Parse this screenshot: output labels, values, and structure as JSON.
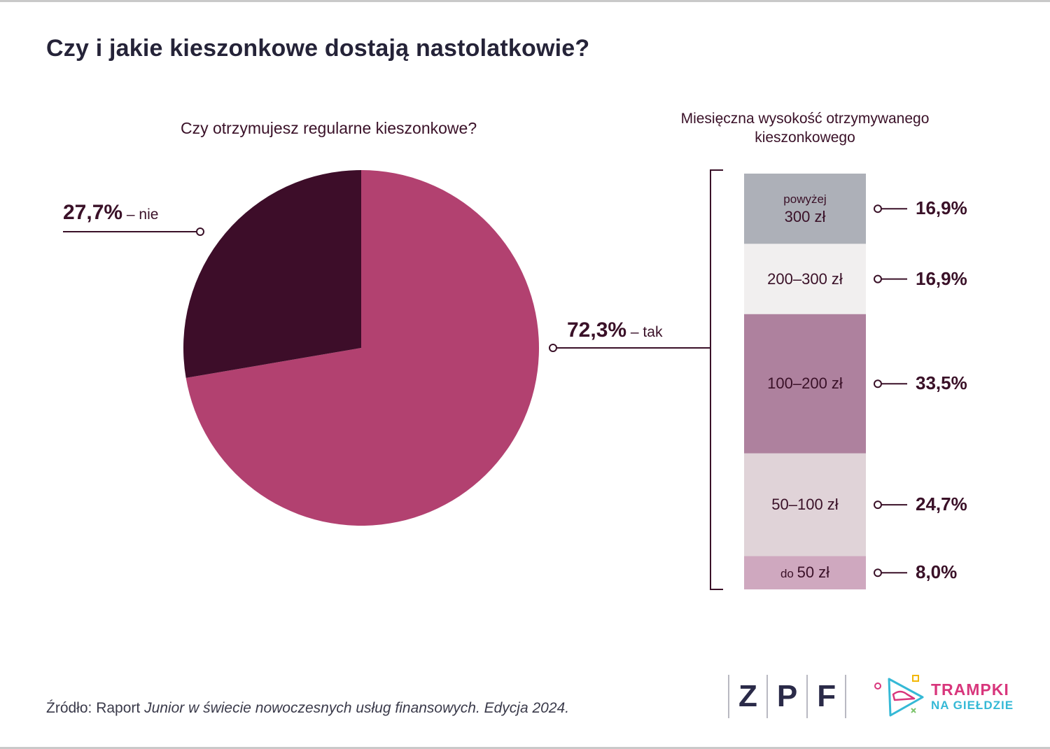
{
  "page": {
    "title": "Czy i jakie kieszonkowe dostają nastolatkowie?",
    "source_prefix": "Źródło: Raport ",
    "source_italic": "Junior w świecie nowoczesnych usług finansowych. Edycja 2024.",
    "logos": {
      "zpf_letters": [
        "Z",
        "P",
        "F"
      ],
      "trampki_line1": "TRAMPKI",
      "trampki_line2": "NA GIEŁDZIE"
    }
  },
  "chart_data": [
    {
      "type": "pie",
      "title": "Czy otrzymujesz regularne kieszonkowe?",
      "slices": [
        {
          "label": "tak",
          "display": "72,3%",
          "value": 72.3,
          "color": "#b24170"
        },
        {
          "label": "nie",
          "display": "27,7%",
          "value": 27.7,
          "color": "#3d0d29"
        }
      ],
      "label_separator": "–"
    },
    {
      "type": "bar",
      "stacked": true,
      "title": "Miesięczna wysokość otrzymywanego kieszonkowego",
      "segments": [
        {
          "label_small": "powyżej",
          "label_big": "300 zł",
          "display": "16,9%",
          "value": 16.9,
          "color": "#adb0b8"
        },
        {
          "label_small": "",
          "label_big": "200–300 zł",
          "display": "16,9%",
          "value": 16.9,
          "color": "#f1efef"
        },
        {
          "label_small": "",
          "label_big": "100–200 zł",
          "display": "33,5%",
          "value": 33.5,
          "color": "#ae819e"
        },
        {
          "label_small": "",
          "label_big": "50–100 zł",
          "display": "24,7%",
          "value": 24.7,
          "color": "#e0d3d8"
        },
        {
          "label_small": "do",
          "label_big": "50 zł",
          "display": "8,0%",
          "value": 8.0,
          "color": "#cfa8bf"
        }
      ]
    }
  ]
}
